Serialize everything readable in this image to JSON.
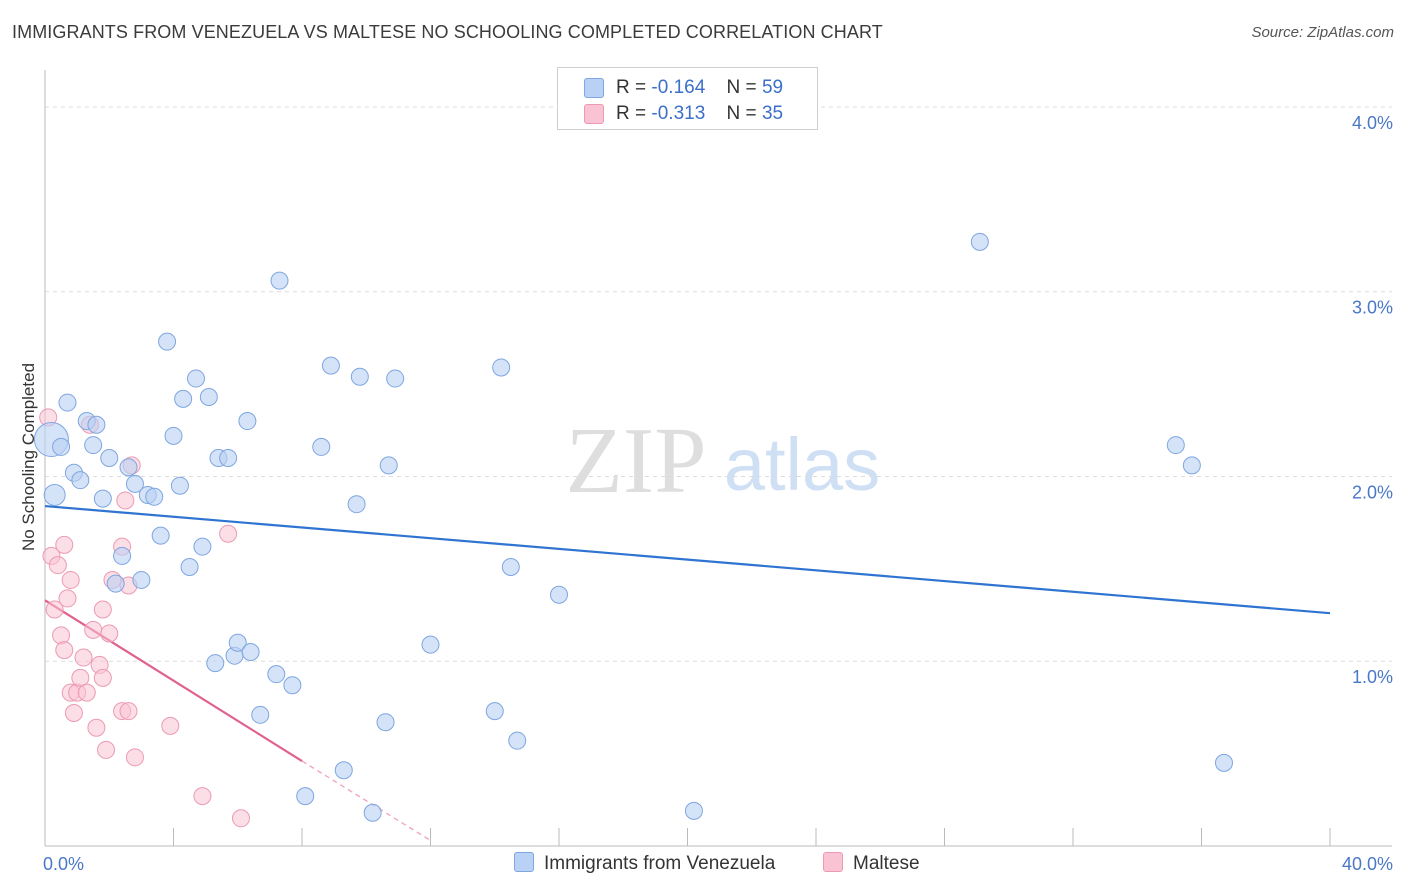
{
  "title": "IMMIGRANTS FROM VENEZUELA VS MALTESE NO SCHOOLING COMPLETED CORRELATION CHART",
  "source": "Source: ZipAtlas.com",
  "watermark": {
    "zip": "ZIP",
    "atlas": "atlas"
  },
  "colors": {
    "blue_fill": "#b9d1f4",
    "blue_stroke": "#7ea6e0",
    "blue_line": "#2f74d0",
    "pink_fill": "#f9c3d4",
    "pink_stroke": "#ec9ab4",
    "pink_line": "#e0608f",
    "tick_text": "#4a78c8",
    "grid": "#dcdcdc"
  },
  "legend": {
    "rows": [
      {
        "r_label": "R =",
        "r_value": "-0.164",
        "n_label": "N =",
        "n_value": "59"
      },
      {
        "r_label": "R =",
        "r_value": "-0.313",
        "n_label": "N =",
        "n_value": "35"
      }
    ]
  },
  "bottom_legend": [
    "Immigrants from Venezuela",
    "Maltese"
  ],
  "chart_data": {
    "type": "scatter",
    "title": "IMMIGRANTS FROM VENEZUELA VS MALTESE NO SCHOOLING COMPLETED CORRELATION CHART",
    "xlabel": "",
    "ylabel": "No Schooling Completed",
    "xlim": [
      0,
      40
    ],
    "ylim": [
      0,
      4.2
    ],
    "x_tick_labels": [
      "0.0%",
      "40.0%"
    ],
    "y_ticks": [
      1,
      2,
      3,
      4
    ],
    "y_tick_labels": [
      "1.0%",
      "2.0%",
      "3.0%",
      "4.0%"
    ],
    "x_minor_ticks": [
      0,
      4,
      8,
      12,
      16,
      20,
      24,
      28,
      32,
      36,
      40
    ],
    "series": [
      {
        "name": "Immigrants from Venezuela",
        "r": -0.164,
        "n": 59,
        "trend": {
          "x": [
            0,
            40
          ],
          "y": [
            1.84,
            1.26
          ]
        },
        "points": [
          [
            0.2,
            2.2
          ],
          [
            0.3,
            1.9
          ],
          [
            0.5,
            2.16
          ],
          [
            0.7,
            2.4
          ],
          [
            0.9,
            2.02
          ],
          [
            1.1,
            1.98
          ],
          [
            1.3,
            2.3
          ],
          [
            1.5,
            2.17
          ],
          [
            1.6,
            2.28
          ],
          [
            1.8,
            1.88
          ],
          [
            2.0,
            2.1
          ],
          [
            2.2,
            1.42
          ],
          [
            2.4,
            1.57
          ],
          [
            2.6,
            2.05
          ],
          [
            2.8,
            1.96
          ],
          [
            3.0,
            1.44
          ],
          [
            3.2,
            1.9
          ],
          [
            3.4,
            1.89
          ],
          [
            3.6,
            1.68
          ],
          [
            3.8,
            2.73
          ],
          [
            4.0,
            2.22
          ],
          [
            4.2,
            1.95
          ],
          [
            4.3,
            2.42
          ],
          [
            4.5,
            1.51
          ],
          [
            4.7,
            2.53
          ],
          [
            4.9,
            1.62
          ],
          [
            5.1,
            2.43
          ],
          [
            5.3,
            0.99
          ],
          [
            5.4,
            2.1
          ],
          [
            5.7,
            2.1
          ],
          [
            5.9,
            1.03
          ],
          [
            6.0,
            1.1
          ],
          [
            6.3,
            2.3
          ],
          [
            6.4,
            1.05
          ],
          [
            6.7,
            0.71
          ],
          [
            7.2,
            0.93
          ],
          [
            7.3,
            3.06
          ],
          [
            7.7,
            0.87
          ],
          [
            8.1,
            0.27
          ],
          [
            8.6,
            2.16
          ],
          [
            8.9,
            2.6
          ],
          [
            9.3,
            0.41
          ],
          [
            9.7,
            1.85
          ],
          [
            9.8,
            2.54
          ],
          [
            10.2,
            0.18
          ],
          [
            10.6,
            0.67
          ],
          [
            10.7,
            2.06
          ],
          [
            10.9,
            2.53
          ],
          [
            12.0,
            1.09
          ],
          [
            14.0,
            0.73
          ],
          [
            14.2,
            2.59
          ],
          [
            14.5,
            1.51
          ],
          [
            14.7,
            0.57
          ],
          [
            16.0,
            1.36
          ],
          [
            20.2,
            0.19
          ],
          [
            29.1,
            3.27
          ],
          [
            35.2,
            2.17
          ],
          [
            35.7,
            2.06
          ],
          [
            36.7,
            0.45
          ]
        ]
      },
      {
        "name": "Maltese",
        "r": -0.313,
        "n": 35,
        "trend": {
          "x": [
            0,
            8
          ],
          "y": [
            1.33,
            0.46
          ]
        },
        "trend_dashed": {
          "x": [
            8,
            12
          ],
          "y": [
            0.46,
            0.03
          ]
        },
        "points": [
          [
            0.1,
            2.32
          ],
          [
            0.2,
            1.57
          ],
          [
            0.3,
            1.28
          ],
          [
            0.4,
            1.52
          ],
          [
            0.5,
            1.14
          ],
          [
            0.6,
            1.63
          ],
          [
            0.6,
            1.06
          ],
          [
            0.7,
            1.34
          ],
          [
            0.8,
            0.83
          ],
          [
            0.8,
            1.44
          ],
          [
            0.9,
            0.72
          ],
          [
            1.0,
            0.83
          ],
          [
            1.1,
            0.91
          ],
          [
            1.2,
            1.02
          ],
          [
            1.3,
            0.83
          ],
          [
            1.5,
            1.17
          ],
          [
            1.6,
            0.64
          ],
          [
            1.7,
            0.98
          ],
          [
            1.8,
            0.91
          ],
          [
            1.8,
            1.28
          ],
          [
            1.9,
            0.52
          ],
          [
            2.0,
            1.15
          ],
          [
            2.1,
            1.44
          ],
          [
            2.4,
            1.62
          ],
          [
            2.4,
            0.73
          ],
          [
            2.5,
            1.87
          ],
          [
            2.6,
            0.73
          ],
          [
            2.6,
            1.41
          ],
          [
            2.7,
            2.06
          ],
          [
            2.8,
            0.48
          ],
          [
            3.9,
            0.65
          ],
          [
            4.9,
            0.27
          ],
          [
            5.7,
            1.69
          ],
          [
            6.1,
            0.15
          ],
          [
            1.4,
            2.28
          ]
        ]
      }
    ]
  }
}
